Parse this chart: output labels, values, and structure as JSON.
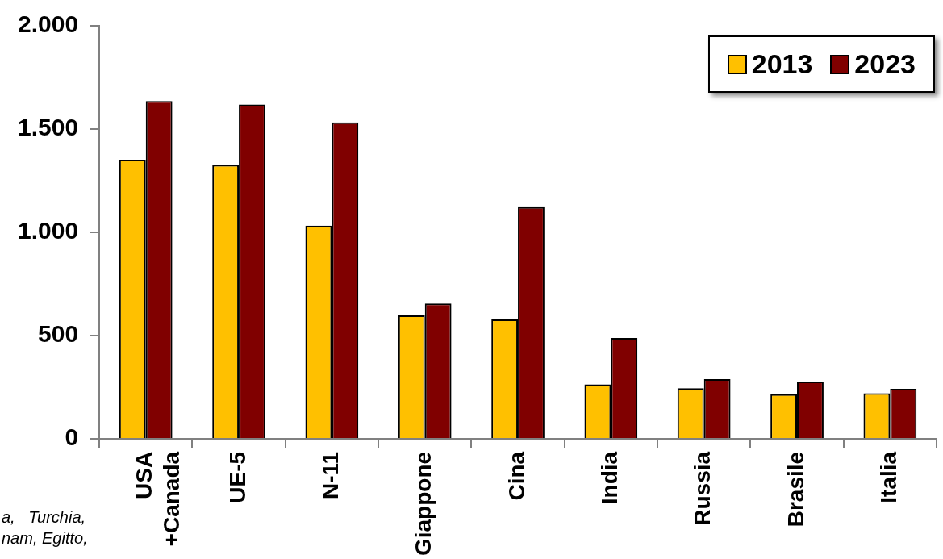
{
  "chart_data": {
    "type": "bar",
    "categories": [
      "USA +Canada",
      "UE-5",
      "N-11",
      "Giappone",
      "Cina",
      "India",
      "Russia",
      "Brasile",
      "Italia"
    ],
    "series": [
      {
        "name": "2013",
        "color": "#ffc000",
        "values": [
          1351,
          1326,
          1032,
          597,
          578,
          263,
          245,
          215,
          220
        ]
      },
      {
        "name": "2023",
        "color": "#800000",
        "values": [
          1636,
          1619,
          1532,
          655,
          1122,
          488,
          289,
          277,
          242
        ]
      }
    ],
    "ylim": [
      0,
      2000
    ],
    "yticks": [
      {
        "value": 0,
        "label": "0"
      },
      {
        "value": 500,
        "label": "500"
      },
      {
        "value": 1000,
        "label": "1.000"
      },
      {
        "value": 1500,
        "label": "1.500"
      },
      {
        "value": 2000,
        "label": "2.000"
      }
    ],
    "grid": false,
    "legend": "top right",
    "annotations": [
      "a,   Turchia,",
      "nam, Egitto,"
    ]
  }
}
